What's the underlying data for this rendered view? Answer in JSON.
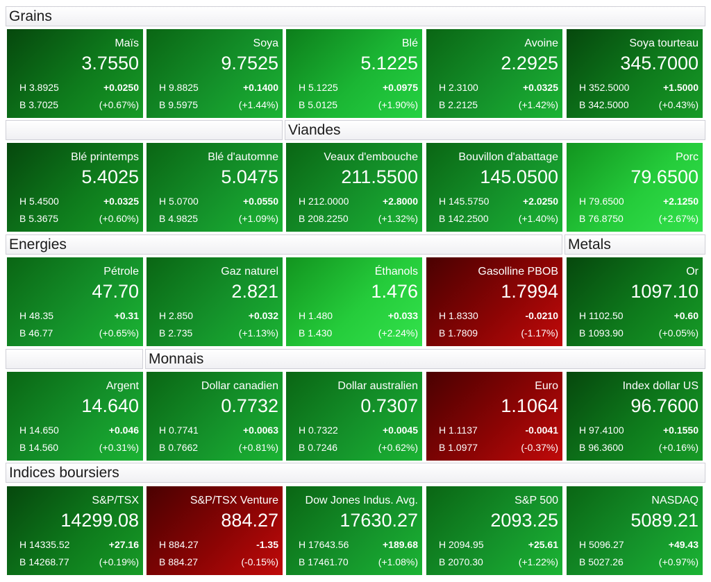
{
  "sections": {
    "grains": "Grains",
    "viandes": "Viandes",
    "energies": "Energies",
    "metals": "Metals",
    "monnais": "Monnais",
    "indices": "Indices boursiers"
  },
  "tiles": [
    {
      "name": "Maïs",
      "price": "3.7550",
      "high": "H 3.8925",
      "low": "B 3.7025",
      "change": "+0.0250",
      "percent": "(+0.67%)",
      "trend": "up"
    },
    {
      "name": "Soya",
      "price": "9.7525",
      "high": "H 9.8825",
      "low": "B 9.5975",
      "change": "+0.1400",
      "percent": "(+1.44%)",
      "trend": "up"
    },
    {
      "name": "Blé",
      "price": "5.1225",
      "high": "H 5.1225",
      "low": "B 5.0125",
      "change": "+0.0975",
      "percent": "(+1.90%)",
      "trend": "up"
    },
    {
      "name": "Avoine",
      "price": "2.2925",
      "high": "H 2.3100",
      "low": "B 2.2125",
      "change": "+0.0325",
      "percent": "(+1.42%)",
      "trend": "up"
    },
    {
      "name": "Soya tourteau",
      "price": "345.7000",
      "high": "H 352.5000",
      "low": "B 342.5000",
      "change": "+1.5000",
      "percent": "(+0.43%)",
      "trend": "up"
    },
    {
      "name": "Blé printemps",
      "price": "5.4025",
      "high": "H 5.4500",
      "low": "B 5.3675",
      "change": "+0.0325",
      "percent": "(+0.60%)",
      "trend": "up"
    },
    {
      "name": "Blé d'automne",
      "price": "5.0475",
      "high": "H 5.0700",
      "low": "B 4.9825",
      "change": "+0.0550",
      "percent": "(+1.09%)",
      "trend": "up"
    },
    {
      "name": "Veaux d'embouche",
      "price": "211.5500",
      "high": "H 212.0000",
      "low": "B 208.2250",
      "change": "+2.8000",
      "percent": "(+1.32%)",
      "trend": "up"
    },
    {
      "name": "Bouvillon d'abattage",
      "price": "145.0500",
      "high": "H 145.5750",
      "low": "B 142.2500",
      "change": "+2.0250",
      "percent": "(+1.40%)",
      "trend": "up"
    },
    {
      "name": "Porc",
      "price": "79.6500",
      "high": "H 79.6500",
      "low": "B 76.8750",
      "change": "+2.1250",
      "percent": "(+2.67%)",
      "trend": "up"
    },
    {
      "name": "Pétrole",
      "price": "47.70",
      "high": "H 48.35",
      "low": "B 46.77",
      "change": "+0.31",
      "percent": "(+0.65%)",
      "trend": "up"
    },
    {
      "name": "Gaz naturel",
      "price": "2.821",
      "high": "H 2.850",
      "low": "B 2.735",
      "change": "+0.032",
      "percent": "(+1.13%)",
      "trend": "up"
    },
    {
      "name": "Éthanols",
      "price": "1.476",
      "high": "H 1.480",
      "low": "B 1.430",
      "change": "+0.033",
      "percent": "(+2.24%)",
      "trend": "up"
    },
    {
      "name": "Gasolline PBOB",
      "price": "1.7994",
      "high": "H 1.8330",
      "low": "B 1.7809",
      "change": "-0.0210",
      "percent": "(-1.17%)",
      "trend": "down"
    },
    {
      "name": "Or",
      "price": "1097.10",
      "high": "H 1102.50",
      "low": "B 1093.90",
      "change": "+0.60",
      "percent": "(+0.05%)",
      "trend": "up"
    },
    {
      "name": "Argent",
      "price": "14.640",
      "high": "H 14.650",
      "low": "B 14.560",
      "change": "+0.046",
      "percent": "(+0.31%)",
      "trend": "up"
    },
    {
      "name": "Dollar canadien",
      "price": "0.7732",
      "high": "H 0.7741",
      "low": "B 0.7662",
      "change": "+0.0063",
      "percent": "(+0.81%)",
      "trend": "up"
    },
    {
      "name": "Dollar australien",
      "price": "0.7307",
      "high": "H 0.7322",
      "low": "B 0.7246",
      "change": "+0.0045",
      "percent": "(+0.62%)",
      "trend": "up"
    },
    {
      "name": "Euro",
      "price": "1.1064",
      "high": "H 1.1137",
      "low": "B 1.0977",
      "change": "-0.0041",
      "percent": "(-0.37%)",
      "trend": "down"
    },
    {
      "name": "Index dollar US",
      "price": "96.7600",
      "high": "H 97.4100",
      "low": "B 96.3600",
      "change": "+0.1550",
      "percent": "(+0.16%)",
      "trend": "up"
    },
    {
      "name": "S&P/TSX",
      "price": "14299.08",
      "high": "H 14335.52",
      "low": "B 14268.77",
      "change": "+27.16",
      "percent": "(+0.19%)",
      "trend": "up"
    },
    {
      "name": "S&P/TSX Venture",
      "price": "884.27",
      "high": "H 884.27",
      "low": "B 884.27",
      "change": "-1.35",
      "percent": "(-0.15%)",
      "trend": "down"
    },
    {
      "name": "Dow Jones Indus. Avg.",
      "price": "17630.27",
      "high": "H 17643.56",
      "low": "B 17461.70",
      "change": "+189.68",
      "percent": "(+1.08%)",
      "trend": "up"
    },
    {
      "name": "S&P 500",
      "price": "2093.25",
      "high": "H 2094.95",
      "low": "B 2070.30",
      "change": "+25.61",
      "percent": "(+1.22%)",
      "trend": "up"
    },
    {
      "name": "NASDAQ",
      "price": "5089.21",
      "high": "H 5096.27",
      "low": "B 5027.26",
      "change": "+49.43",
      "percent": "(+0.97%)",
      "trend": "up"
    }
  ]
}
